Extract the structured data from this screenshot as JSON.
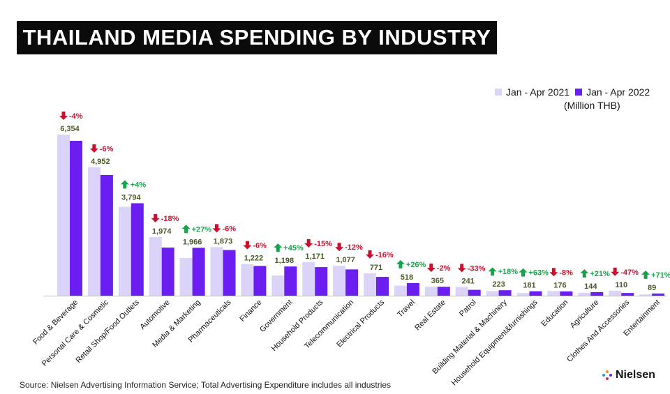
{
  "title": "THAILAND MEDIA SPENDING BY INDUSTRY",
  "source": "Source: Nielsen Advertising Information Service; Total Advertising Expenditure includes all industries",
  "brand": "Nielsen",
  "colors": {
    "series_2021": "#dcd3f8",
    "series_2022": "#6a1ef0",
    "value_label": "#4b5a2a",
    "up": "#17a34a",
    "down": "#c8102e"
  },
  "chart_data": {
    "type": "bar",
    "unit": "(Million THB)",
    "legend_position": "top-right",
    "series": [
      {
        "name": "Jan - Apr 2021",
        "values": [
          6611,
          5268,
          3648,
          2407,
          1548,
          1993,
          1300,
          826,
          1373,
          1224,
          918,
          411,
          372,
          360,
          189,
          111,
          192,
          119,
          207,
          52
        ]
      },
      {
        "name": "Jan - Apr 2022",
        "values": [
          6354,
          4952,
          3794,
          1974,
          1966,
          1873,
          1222,
          1198,
          1171,
          1077,
          771,
          518,
          365,
          241,
          223,
          181,
          176,
          144,
          110,
          89
        ]
      }
    ],
    "categories": [
      "Food & Beverage",
      "Personal Care & Cosmetic",
      "Retail Shop/Food Outlets",
      "Automotive",
      "Media & Marketing",
      "Pharmaceuticals",
      "Finance",
      "Government",
      "Household Products",
      "Telecommunication",
      "Electrical Products",
      "Travel",
      "Real Estate",
      "Patrol",
      "Building Material & Machinery",
      "Household Equipment&furnishings",
      "Education",
      "Agriculture",
      "Clothes And Accessories",
      "Entertainment"
    ],
    "value_labels": [
      "6,354",
      "4,952",
      "3,794",
      "1,974",
      "1,966",
      "1,873",
      "1,222",
      "1,198",
      "1,171",
      "1,077",
      "771",
      "518",
      "365",
      "241",
      "223",
      "181",
      "176",
      "144",
      "110",
      "89"
    ],
    "changes": [
      "-4%",
      "-6%",
      "+4%",
      "-18%",
      "+27%",
      "-6%",
      "-6%",
      "+45%",
      "-15%",
      "-12%",
      "-16%",
      "+26%",
      "-2%",
      "-33%",
      "+18%",
      "+63%",
      "-8%",
      "+21%",
      "-47%",
      "+71%"
    ],
    "directions": [
      "down",
      "down",
      "up",
      "down",
      "up",
      "down",
      "down",
      "up",
      "down",
      "down",
      "down",
      "up",
      "down",
      "down",
      "up",
      "up",
      "down",
      "up",
      "down",
      "up"
    ]
  }
}
